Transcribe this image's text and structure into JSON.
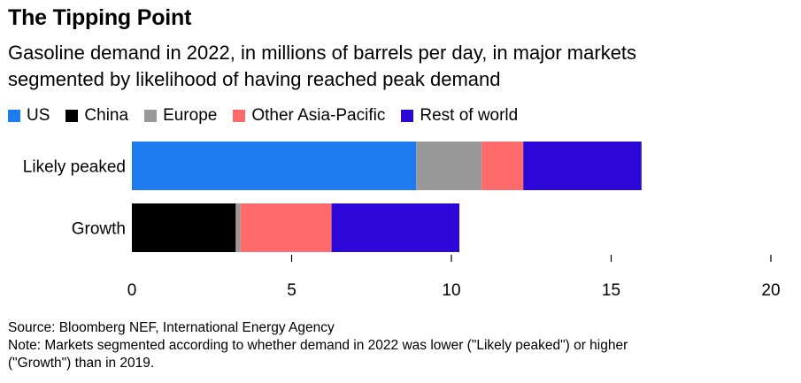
{
  "header": {
    "title": "The Tipping Point",
    "subtitle_line1": "Gasoline demand in 2022, in millions of barrels per day, in major markets",
    "subtitle_line2": "segmented by likelihood of having reached peak demand"
  },
  "chart_data": {
    "type": "bar",
    "orientation": "horizontal",
    "stacked": true,
    "categories": [
      "Likely peaked",
      "Growth"
    ],
    "series": [
      {
        "name": "US",
        "color": "#1f7cf0",
        "values": [
          8.9,
          0
        ]
      },
      {
        "name": "China",
        "color": "#000000",
        "values": [
          0,
          3.25
        ]
      },
      {
        "name": "Europe",
        "color": "#999999",
        "values": [
          2.05,
          0.15
        ]
      },
      {
        "name": "Other Asia-Pacific",
        "color": "#ff6a6a",
        "values": [
          1.3,
          2.85
        ]
      },
      {
        "name": "Rest of world",
        "color": "#2c08d8",
        "values": [
          3.7,
          4.0
        ]
      }
    ],
    "xlim": [
      0,
      20
    ],
    "xticks": [
      "0",
      "5",
      "10",
      "15",
      "20"
    ],
    "xtick_values": [
      0,
      5,
      10,
      15,
      20
    ],
    "legend_position": "top-left",
    "grid": false
  },
  "footer": {
    "source": "Source: Bloomberg NEF, International Energy Agency",
    "note_line1": "Note: Markets segmented according to whether demand in 2022 was lower (\"Likely peaked\") or higher",
    "note_line2": "(\"Growth\") than in 2019."
  }
}
